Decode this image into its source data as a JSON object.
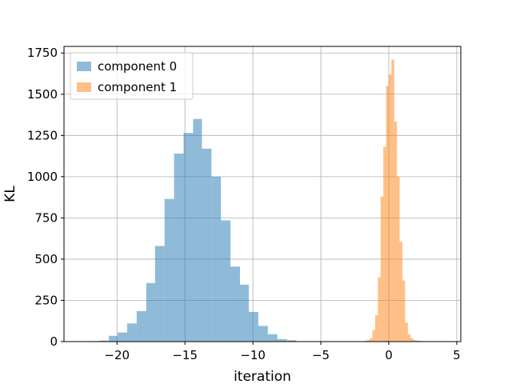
{
  "chart_data": {
    "type": "bar",
    "title": "",
    "xlabel": "iteration",
    "ylabel": "KL",
    "xlim": [
      -23.9,
      5.3
    ],
    "ylim": [
      0,
      1790
    ],
    "xticks": [
      -20,
      -15,
      -10,
      -5,
      0,
      5
    ],
    "xtick_labels": [
      "−20",
      "−15",
      "−10",
      "−5",
      "0",
      "5"
    ],
    "yticks": [
      0,
      250,
      500,
      750,
      1000,
      1250,
      1500,
      1750
    ],
    "ytick_labels": [
      "0",
      "250",
      "500",
      "750",
      "1000",
      "1250",
      "1500",
      "1750"
    ],
    "grid": true,
    "legend_position": "top-left",
    "series": [
      {
        "name": "component 0",
        "color": "#1f77b4",
        "opacity": 0.5,
        "bin_edges": [
          -22.0,
          -21.3,
          -20.6,
          -19.95,
          -19.25,
          -18.55,
          -17.85,
          -17.2,
          -16.5,
          -15.8,
          -15.1,
          -14.4,
          -13.75,
          -13.05,
          -12.35,
          -11.65,
          -10.95,
          -10.3,
          -9.6,
          -8.9,
          -8.2,
          -7.5,
          -6.8
        ],
        "values": [
          3,
          6,
          35,
          55,
          110,
          185,
          355,
          580,
          865,
          1140,
          1265,
          1350,
          1170,
          1000,
          735,
          455,
          345,
          180,
          95,
          45,
          15,
          8
        ]
      },
      {
        "name": "component 1",
        "color": "#ff7f0e",
        "opacity": 0.5,
        "bin_edges": [
          -1.8,
          -1.6,
          -1.4,
          -1.2,
          -1.0,
          -0.8,
          -0.6,
          -0.4,
          -0.2,
          0.0,
          0.2,
          0.4,
          0.6,
          0.8,
          1.0,
          1.2,
          1.4,
          1.6,
          1.8,
          2.0,
          2.2,
          2.4,
          2.6,
          2.8,
          3.0
        ],
        "values": [
          5,
          10,
          20,
          70,
          160,
          390,
          880,
          1180,
          1550,
          1620,
          1710,
          1335,
          1000,
          605,
          370,
          115,
          45,
          20,
          10,
          7,
          5,
          3,
          2,
          1
        ]
      }
    ]
  }
}
